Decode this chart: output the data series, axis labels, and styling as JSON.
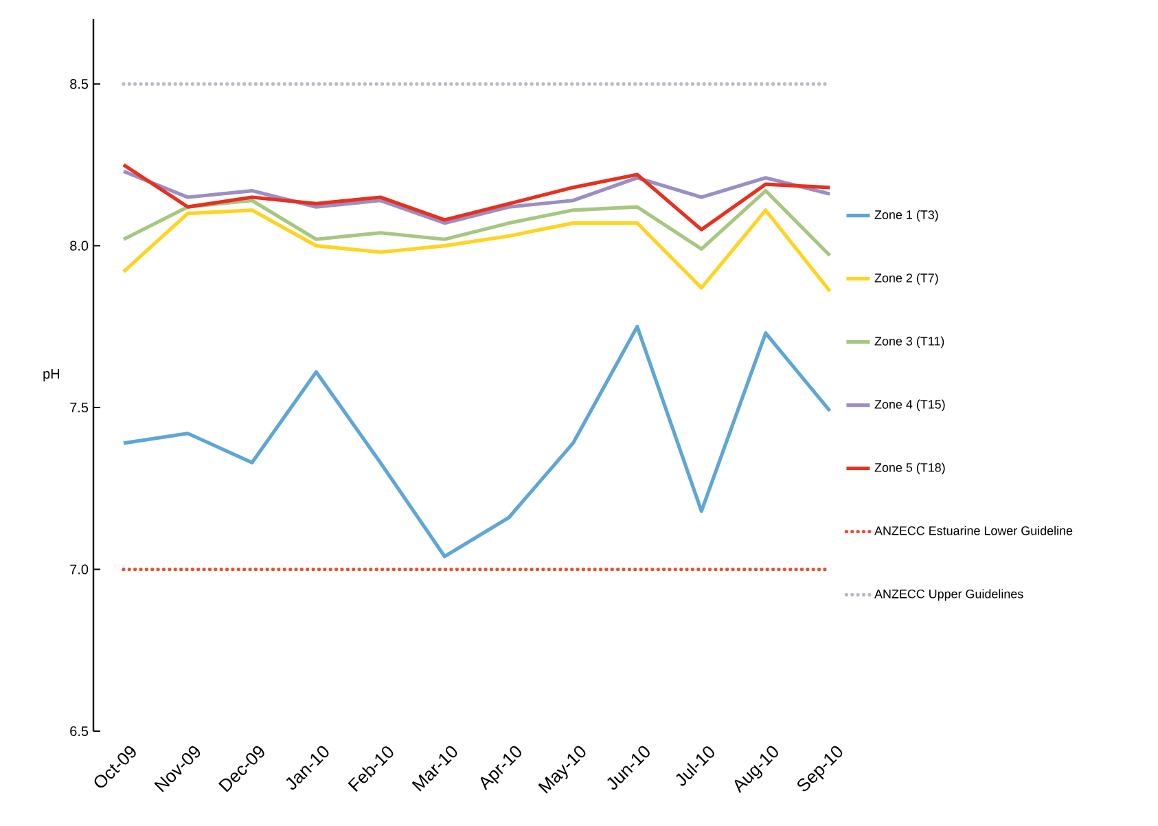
{
  "chart_data": {
    "type": "line",
    "ylabel": "pH",
    "legend": "right",
    "categories": [
      "Oct-09",
      "Nov-09",
      "Dec-09",
      "Jan-10",
      "Feb-10",
      "Mar-10",
      "Apr-10",
      "May-10",
      "Jun-10",
      "Jul-10",
      "Aug-10",
      "Sep-10"
    ],
    "ylim": [
      6.5,
      8.7
    ],
    "yticks": [
      {
        "value": 6.5,
        "label": "6.5"
      },
      {
        "value": 7,
        "label": "7.0"
      },
      {
        "value": 7.5,
        "label": "7.5"
      },
      {
        "value": 8,
        "label": "8.0"
      },
      {
        "value": 8.5,
        "label": "8.5"
      }
    ],
    "series": [
      {
        "name": "Zone 1 (T3)",
        "color": "#5ea6d6",
        "line_style": "solid",
        "values": [
          7.39,
          7.42,
          7.33,
          7.61,
          7.33,
          7.04,
          7.16,
          7.39,
          7.75,
          7.18,
          7.73,
          7.49
        ]
      },
      {
        "name": "Zone 2 (T7)",
        "color": "#ffd320",
        "line_style": "solid",
        "values": [
          7.92,
          8.1,
          8.11,
          8.0,
          7.98,
          8.0,
          8.03,
          8.07,
          8.07,
          7.87,
          8.11,
          7.86
        ]
      },
      {
        "name": "Zone 3 (T11)",
        "color": "#a6c77f",
        "line_style": "solid",
        "values": [
          8.02,
          8.12,
          8.14,
          8.02,
          8.04,
          8.02,
          8.07,
          8.11,
          8.12,
          7.99,
          8.17,
          7.97
        ]
      },
      {
        "name": "Zone 4 (T15)",
        "color": "#9b8ec4",
        "line_style": "solid",
        "values": [
          8.23,
          8.15,
          8.17,
          8.12,
          8.14,
          8.07,
          8.12,
          8.14,
          8.21,
          8.15,
          8.21,
          8.16
        ]
      },
      {
        "name": "Zone 5 (T18)",
        "color": "#e8301f",
        "line_style": "solid",
        "values": [
          8.25,
          8.12,
          8.15,
          8.13,
          8.15,
          8.08,
          8.13,
          8.18,
          8.22,
          8.05,
          8.19,
          8.18
        ]
      },
      {
        "name": "ANZECC Estuarine Lower Guideline",
        "color": "#f04a2a",
        "line_style": "dotted",
        "values": [
          7,
          7,
          7,
          7,
          7,
          7,
          7,
          7,
          7,
          7,
          7,
          7
        ]
      },
      {
        "name": "ANZECC Upper Guidelines",
        "color": "#b8bcc4",
        "line_style": "dotted",
        "values": [
          8.5,
          8.5,
          8.5,
          8.5,
          8.5,
          8.5,
          8.5,
          8.5,
          8.5,
          8.5,
          8.5,
          8.5
        ]
      }
    ]
  }
}
